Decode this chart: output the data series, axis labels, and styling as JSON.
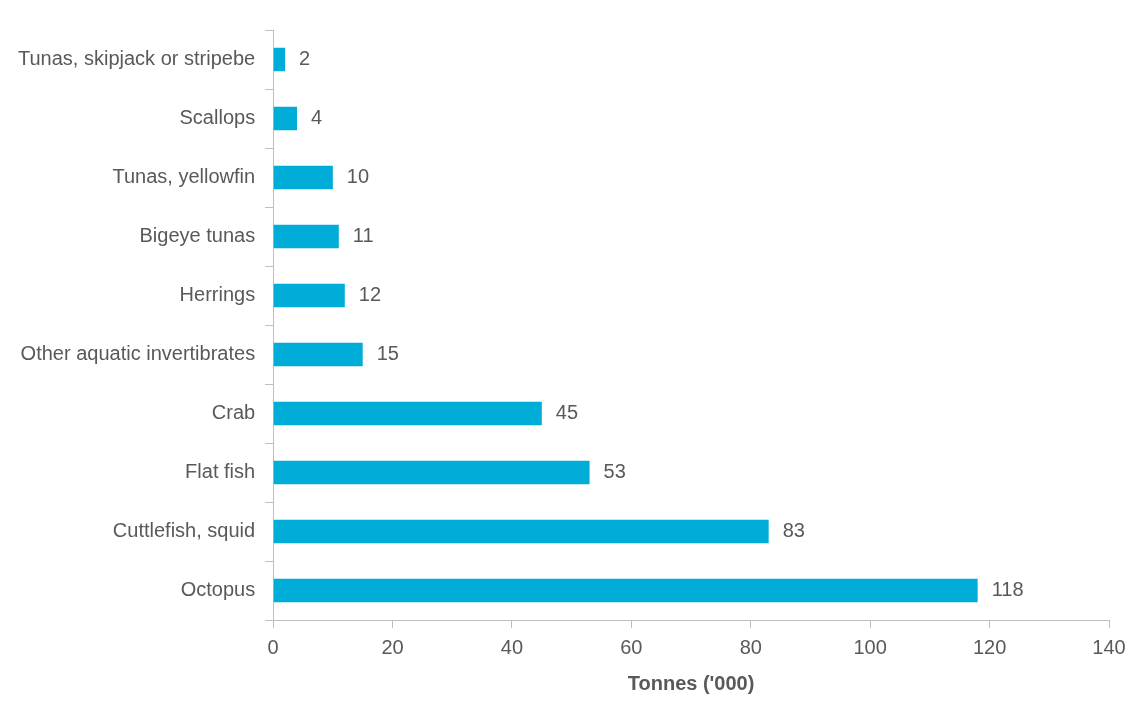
{
  "chart_data": {
    "type": "bar",
    "orientation": "horizontal",
    "xlabel": "Tonnes ('000)",
    "categories": [
      "Tunas, skipjack or stripebe",
      "Scallops",
      "Tunas, yellowfin",
      "Bigeye tunas",
      "Herrings",
      "Other aquatic invertibrates",
      "Crab",
      "Flat fish",
      "Cuttlefish, squid",
      "Octopus"
    ],
    "values": [
      2,
      4,
      10,
      11,
      12,
      15,
      45,
      53,
      83,
      118
    ],
    "color": "#00acd8",
    "xlim": [
      0,
      140
    ],
    "xticks": [
      0,
      20,
      40,
      60,
      80,
      100,
      120,
      140
    ],
    "data_labels": true,
    "grid": false,
    "legend": false
  }
}
